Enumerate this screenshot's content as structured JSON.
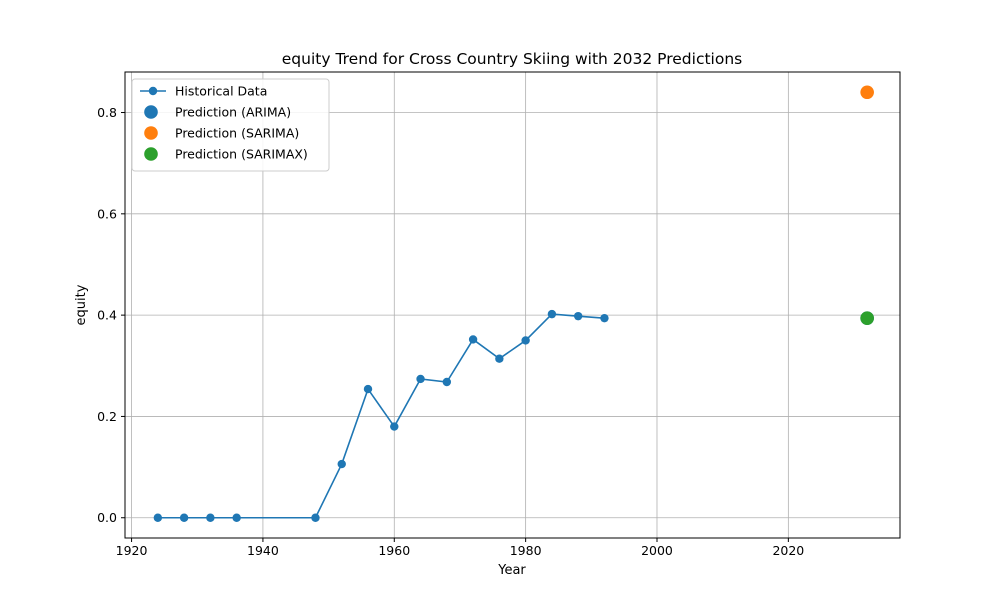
{
  "chart_data": {
    "type": "line",
    "title": "equity Trend for Cross Country Skiing with 2032 Predictions",
    "xlabel": "Year",
    "ylabel": "equity",
    "xlim": [
      1919,
      2037
    ],
    "ylim": [
      -0.04,
      0.88
    ],
    "xticks": [
      1920,
      1940,
      1960,
      1980,
      2000,
      2020
    ],
    "yticks": [
      0.0,
      0.2,
      0.4,
      0.6,
      0.8
    ],
    "xtick_labels": [
      "1920",
      "1940",
      "1960",
      "1980",
      "2000",
      "2020"
    ],
    "ytick_labels": [
      "0.0",
      "0.2",
      "0.4",
      "0.6",
      "0.8"
    ],
    "grid": true,
    "legend_position": "top-left",
    "series": [
      {
        "name": "Historical Data",
        "kind": "line-marker",
        "color": "#1f77b4",
        "x": [
          1924,
          1928,
          1932,
          1936,
          1948,
          1952,
          1956,
          1960,
          1964,
          1968,
          1972,
          1976,
          1980,
          1984,
          1988,
          1992
        ],
        "y": [
          0.0,
          0.0,
          0.0,
          0.0,
          0.0,
          0.106,
          0.254,
          0.18,
          0.274,
          0.268,
          0.352,
          0.314,
          0.35,
          0.402,
          0.398,
          0.394
        ]
      },
      {
        "name": "Prediction (ARIMA)",
        "kind": "point",
        "color": "#1f77b4",
        "x": [
          2032
        ],
        "y": [
          0.394
        ]
      },
      {
        "name": "Prediction (SARIMA)",
        "kind": "point",
        "color": "#ff7f0e",
        "x": [
          2032
        ],
        "y": [
          0.84
        ]
      },
      {
        "name": "Prediction (SARIMAX)",
        "kind": "point",
        "color": "#2ca02c",
        "x": [
          2032
        ],
        "y": [
          0.394
        ]
      }
    ]
  }
}
